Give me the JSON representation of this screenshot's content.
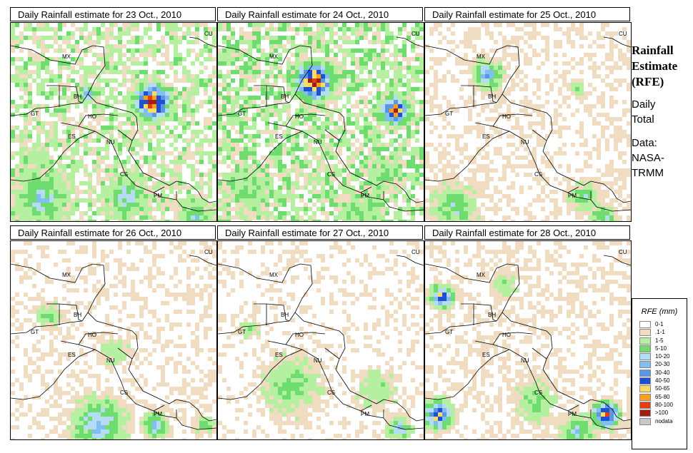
{
  "panels": [
    {
      "title": "Daily Rainfall estimate for  23 Oct., 2010",
      "profile": "d23"
    },
    {
      "title": "Daily Rainfall estimate for  24 Oct., 2010",
      "profile": "d24"
    },
    {
      "title": "Daily Rainfall estimate for  25 Oct., 2010",
      "profile": "d25"
    },
    {
      "title": "Daily Rainfall estimate for  26 Oct., 2010",
      "profile": "d26"
    },
    {
      "title": "Daily Rainfall estimate for  27 Oct., 2010",
      "profile": "d27"
    },
    {
      "title": "Daily Rainfall estimate for  28 Oct., 2010",
      "profile": "d28"
    }
  ],
  "country_labels": [
    "MX",
    "BH",
    "GT",
    "HO",
    "ES",
    "NU",
    "CS",
    "PM",
    "CU"
  ],
  "side": {
    "title_lines": [
      "Rainfall",
      "Estimate",
      "(RFE)"
    ],
    "subtitle_lines": [
      "Daily",
      "Total"
    ],
    "source_lines": [
      "Data:",
      "NASA-",
      "TRMM"
    ]
  },
  "legend": {
    "title": "RFE (mm)",
    "items": [
      {
        "label": "0-1",
        "color": "#ffffff"
      },
      {
        "label": ".1-1",
        "color": "#f0dcc0"
      },
      {
        "label": "1-5",
        "color": "#b4f0a0"
      },
      {
        "label": "5-10",
        "color": "#6edc6e"
      },
      {
        "label": "10-20",
        "color": "#b4dcf5"
      },
      {
        "label": "20-30",
        "color": "#82bef0"
      },
      {
        "label": "30-40",
        "color": "#5a96e6"
      },
      {
        "label": "40-50",
        "color": "#1e50d2"
      },
      {
        "label": "50-65",
        "color": "#fadc64"
      },
      {
        "label": "65-80",
        "color": "#faa01e"
      },
      {
        "label": "80-100",
        "color": "#e63c14"
      },
      {
        "label": ">100",
        "color": "#a01e14"
      },
      {
        "label": "nodata",
        "color": "#c8c8c8"
      }
    ]
  }
}
